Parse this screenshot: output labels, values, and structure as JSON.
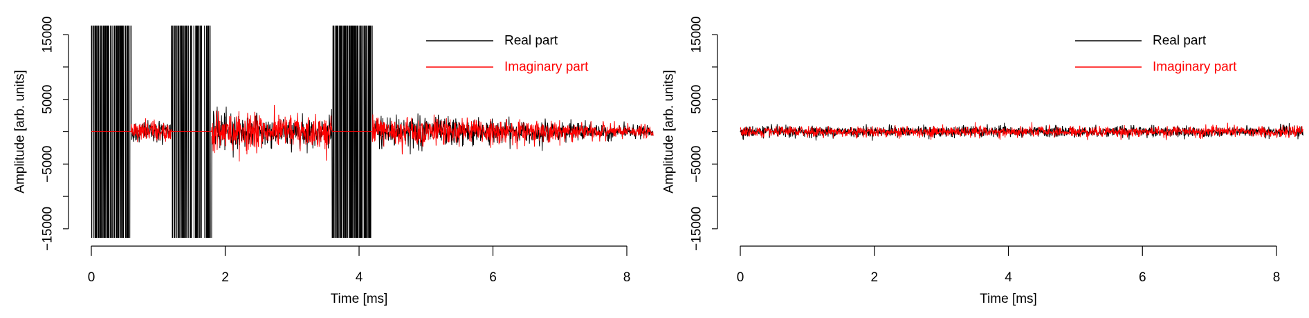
{
  "chart_data": [
    {
      "type": "line",
      "panel": "left",
      "xlabel": "Time [ms]",
      "ylabel": "Amplitude [arb. units]",
      "xlim": [
        0,
        8.4
      ],
      "ylim": [
        -16400,
        16400
      ],
      "xticks": [
        0,
        2,
        4,
        6,
        8
      ],
      "xtick_labels": [
        "0",
        "2",
        "4",
        "6",
        "8"
      ],
      "yticks": [
        -15000,
        -10000,
        -5000,
        0,
        5000,
        10000,
        15000
      ],
      "ytick_labels": [
        "−15000",
        "",
        "−5000",
        "",
        "5000",
        "",
        "15000"
      ],
      "legend": {
        "position": "top-right",
        "entries": [
          {
            "label": "Real part",
            "color": "#000000"
          },
          {
            "label": "Imaginary part",
            "color": "#ff0000"
          }
        ]
      },
      "series": [
        {
          "name": "Real part",
          "color": "#000000"
        },
        {
          "name": "Imaginary part",
          "color": "#ff0000"
        }
      ],
      "segments": [
        {
          "t": [
            0,
            0.6
          ],
          "real": "saturated",
          "imag": "zero"
        },
        {
          "t": [
            0.6,
            1.2
          ],
          "real": "noise",
          "imag": "noise",
          "amplitude": [
            1400,
            1700
          ]
        },
        {
          "t": [
            1.2,
            1.8
          ],
          "real": "saturated",
          "imag": "zero"
        },
        {
          "t": [
            1.8,
            3.6
          ],
          "real": "noise",
          "imag": "noise",
          "amplitude": [
            2600,
            2000
          ]
        },
        {
          "t": [
            3.6,
            4.2
          ],
          "real": "saturated",
          "imag": "zero"
        },
        {
          "t": [
            4.2,
            8.4
          ],
          "real": "noise",
          "imag": "noise",
          "amplitude": [
            2400,
            800
          ]
        }
      ]
    },
    {
      "type": "line",
      "panel": "right",
      "xlabel": "Time [ms]",
      "ylabel": "Amplitude [arb. units]",
      "xlim": [
        0,
        8.4
      ],
      "ylim": [
        -16400,
        16400
      ],
      "xticks": [
        0,
        2,
        4,
        6,
        8
      ],
      "xtick_labels": [
        "0",
        "2",
        "4",
        "6",
        "8"
      ],
      "yticks": [
        -15000,
        -10000,
        -5000,
        0,
        5000,
        10000,
        15000
      ],
      "ytick_labels": [
        "−15000",
        "",
        "−5000",
        "",
        "5000",
        "",
        "15000"
      ],
      "legend": {
        "position": "top-right",
        "entries": [
          {
            "label": "Real part",
            "color": "#000000"
          },
          {
            "label": "Imaginary part",
            "color": "#ff0000"
          }
        ]
      },
      "series": [
        {
          "name": "Real part",
          "color": "#000000"
        },
        {
          "name": "Imaginary part",
          "color": "#ff0000"
        }
      ],
      "segments": [
        {
          "t": [
            0,
            8.4
          ],
          "real": "noise",
          "imag": "noise",
          "amplitude": [
            750,
            750
          ]
        }
      ]
    }
  ]
}
